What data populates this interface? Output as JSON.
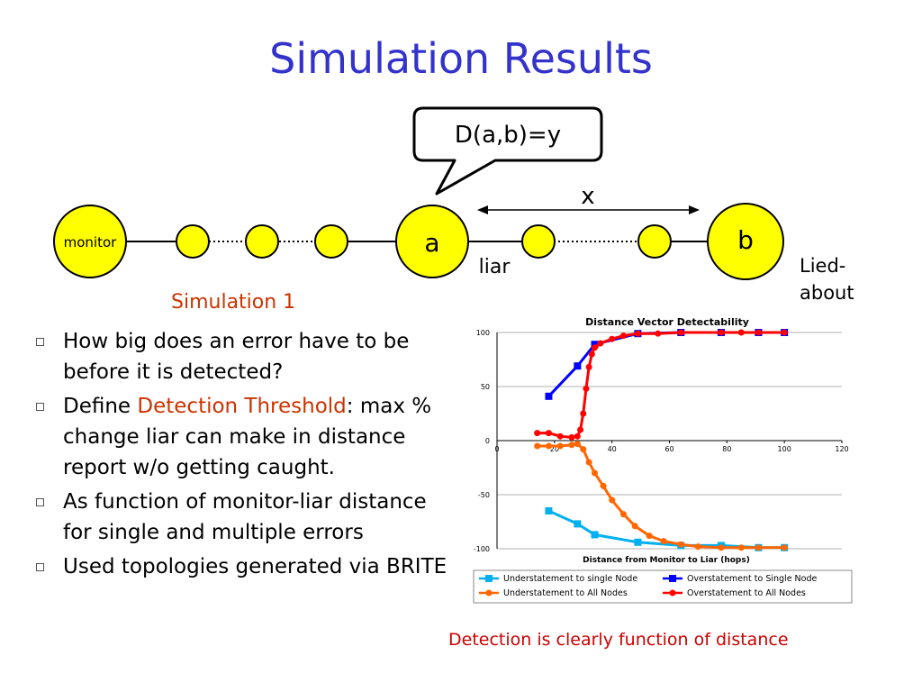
{
  "slide": {
    "title": "Simulation Results",
    "subheading": "Simulation 1",
    "caption": "Detection is clearly function of distance"
  },
  "diagram": {
    "monitor_label": "monitor",
    "node_a_label": "a",
    "node_b_label": "b",
    "callout_text": "D(a,b)=y",
    "distance_label": "x",
    "liar_label": "liar",
    "lied_about_label_line1": "Lied-",
    "lied_about_label_line2": "about"
  },
  "bullets": {
    "b1": "How big does an error have to be before it is detected?",
    "b2_pre": "Define ",
    "b2_term": "Detection Threshold",
    "b2_post": ": max % change liar can make in distance report w/o getting caught.",
    "b3": "As function of monitor-liar distance for single and multiple errors",
    "b4": "Used topologies generated via BRITE"
  },
  "colors": {
    "title_blue": "#3333cc",
    "highlight": "#cc3300",
    "node_fill": "#ffff00",
    "understatement_single": "#00b0f0",
    "overstatement_single": "#0000ff",
    "understatement_all": "#ff6600",
    "overstatement_all": "#ff0000"
  },
  "chart_data": {
    "type": "line",
    "title": "Distance Vector Detectability",
    "xlabel": "Distance from Monitor to Liar (hops)",
    "ylabel": "",
    "xlim": [
      0,
      120
    ],
    "ylim": [
      -100,
      100
    ],
    "xticks": [
      0,
      20,
      40,
      60,
      80,
      100,
      120
    ],
    "yticks": [
      -100,
      -50,
      0,
      50,
      100
    ],
    "grid": "horizontal",
    "legend_position": "bottom",
    "series": [
      {
        "name": "Understatement to single Node",
        "color": "#00b0f0",
        "marker": "square",
        "points": [
          [
            18,
            -65
          ],
          [
            28,
            -77
          ],
          [
            34,
            -87
          ],
          [
            49,
            -94
          ],
          [
            64,
            -97
          ],
          [
            78,
            -97
          ],
          [
            91,
            -99
          ],
          [
            100,
            -99
          ]
        ]
      },
      {
        "name": "Overstatement to Single Node",
        "color": "#0000ff",
        "marker": "square",
        "points": [
          [
            18,
            41
          ],
          [
            28,
            69
          ],
          [
            34,
            89
          ],
          [
            49,
            99
          ],
          [
            64,
            100
          ],
          [
            78,
            100
          ],
          [
            91,
            100
          ],
          [
            100,
            100
          ]
        ]
      },
      {
        "name": "Understatement to All Nodes",
        "color": "#ff6600",
        "marker": "circle",
        "points": [
          [
            14,
            -5
          ],
          [
            18,
            -5
          ],
          [
            22,
            -5
          ],
          [
            26,
            -4
          ],
          [
            28,
            -3
          ],
          [
            30,
            -8
          ],
          [
            32,
            -20
          ],
          [
            34,
            -30
          ],
          [
            37,
            -42
          ],
          [
            40,
            -55
          ],
          [
            44,
            -68
          ],
          [
            48,
            -79
          ],
          [
            53,
            -88
          ],
          [
            58,
            -93
          ],
          [
            64,
            -96
          ],
          [
            70,
            -98
          ],
          [
            78,
            -99
          ],
          [
            85,
            -99
          ],
          [
            91,
            -99
          ],
          [
            100,
            -99
          ]
        ]
      },
      {
        "name": "Overstatement to All Nodes",
        "color": "#ff0000",
        "marker": "circle",
        "points": [
          [
            14,
            7
          ],
          [
            18,
            7
          ],
          [
            22,
            4
          ],
          [
            26,
            3
          ],
          [
            28,
            4
          ],
          [
            29,
            10
          ],
          [
            30,
            25
          ],
          [
            31,
            48
          ],
          [
            32,
            68
          ],
          [
            33,
            80
          ],
          [
            34,
            86
          ],
          [
            36,
            90
          ],
          [
            40,
            94
          ],
          [
            44,
            97
          ],
          [
            49,
            99
          ],
          [
            56,
            99
          ],
          [
            64,
            100
          ],
          [
            78,
            100
          ],
          [
            85,
            100
          ],
          [
            91,
            100
          ],
          [
            100,
            100
          ]
        ]
      }
    ]
  }
}
